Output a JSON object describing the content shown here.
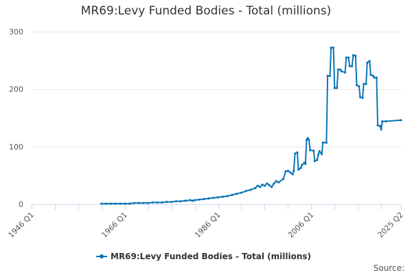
{
  "chart_data": {
    "type": "line",
    "title": "MR69:Levy Funded Bodies - Total (millions)",
    "xlabel": "",
    "ylabel": "",
    "x_ticks": [
      "1946 Q1",
      "1966 Q1",
      "1986 Q1",
      "2006 Q1",
      "2025 Q2"
    ],
    "x_range": [
      1946.0,
      2025.25
    ],
    "y_ticks": [
      0,
      100,
      200,
      300
    ],
    "ylim": [
      0,
      300
    ],
    "grid": "horizontal",
    "legend_position": "bottom-center",
    "credits": "Source:",
    "series": [
      {
        "name": "MR69:Levy Funded Bodies - Total (millions)",
        "color": "#0a74b8",
        "points": [
          [
            1961.0,
            1
          ],
          [
            1962.0,
            1
          ],
          [
            1963.0,
            1
          ],
          [
            1964.0,
            1
          ],
          [
            1965.0,
            1
          ],
          [
            1966.0,
            1
          ],
          [
            1967.0,
            1
          ],
          [
            1968.0,
            2
          ],
          [
            1969.0,
            2
          ],
          [
            1970.0,
            2
          ],
          [
            1971.0,
            2
          ],
          [
            1972.0,
            3
          ],
          [
            1973.0,
            3
          ],
          [
            1974.0,
            3
          ],
          [
            1975.0,
            4
          ],
          [
            1976.0,
            4
          ],
          [
            1977.0,
            5
          ],
          [
            1978.0,
            5
          ],
          [
            1979.0,
            6
          ],
          [
            1980.0,
            7
          ],
          [
            1980.5,
            6
          ],
          [
            1981.0,
            7
          ],
          [
            1982.0,
            8
          ],
          [
            1983.0,
            9
          ],
          [
            1984.0,
            10
          ],
          [
            1985.0,
            11
          ],
          [
            1986.0,
            12
          ],
          [
            1987.0,
            13
          ],
          [
            1988.0,
            14
          ],
          [
            1989.0,
            16
          ],
          [
            1990.0,
            18
          ],
          [
            1991.0,
            20
          ],
          [
            1992.0,
            23
          ],
          [
            1993.0,
            25
          ],
          [
            1994.0,
            28
          ],
          [
            1994.5,
            32
          ],
          [
            1995.0,
            30
          ],
          [
            1995.5,
            34
          ],
          [
            1996.0,
            32
          ],
          [
            1996.5,
            36
          ],
          [
            1997.0,
            33
          ],
          [
            1997.5,
            30
          ],
          [
            1998.0,
            36
          ],
          [
            1998.5,
            40
          ],
          [
            1999.0,
            38
          ],
          [
            2000.0,
            44
          ],
          [
            2000.5,
            57
          ],
          [
            2001.0,
            58
          ],
          [
            2001.5,
            55
          ],
          [
            2002.0,
            52
          ],
          [
            2002.25,
            58
          ],
          [
            2002.5,
            88
          ],
          [
            2003.0,
            90
          ],
          [
            2003.25,
            60
          ],
          [
            2003.75,
            63
          ],
          [
            2004.0,
            68
          ],
          [
            2004.5,
            72
          ],
          [
            2004.75,
            70
          ],
          [
            2005.0,
            112
          ],
          [
            2005.25,
            115
          ],
          [
            2005.5,
            112
          ],
          [
            2005.75,
            94
          ],
          [
            2006.5,
            93
          ],
          [
            2006.75,
            75
          ],
          [
            2007.25,
            77
          ],
          [
            2007.5,
            86
          ],
          [
            2007.75,
            92
          ],
          [
            2008.25,
            87
          ],
          [
            2008.5,
            107
          ],
          [
            2009.25,
            107
          ],
          [
            2009.5,
            223
          ],
          [
            2010.0,
            223
          ],
          [
            2010.25,
            272
          ],
          [
            2010.75,
            272
          ],
          [
            2011.0,
            202
          ],
          [
            2011.5,
            202
          ],
          [
            2011.75,
            234
          ],
          [
            2012.25,
            234
          ],
          [
            2012.5,
            231
          ],
          [
            2013.25,
            229
          ],
          [
            2013.5,
            255
          ],
          [
            2014.0,
            255
          ],
          [
            2014.25,
            240
          ],
          [
            2014.75,
            240
          ],
          [
            2015.0,
            259
          ],
          [
            2015.5,
            258
          ],
          [
            2015.75,
            207
          ],
          [
            2016.25,
            205
          ],
          [
            2016.5,
            186
          ],
          [
            2017.0,
            185
          ],
          [
            2017.25,
            209
          ],
          [
            2017.75,
            209
          ],
          [
            2018.0,
            246
          ],
          [
            2018.5,
            249
          ],
          [
            2018.75,
            225
          ],
          [
            2019.25,
            223
          ],
          [
            2019.5,
            220
          ],
          [
            2020.0,
            220
          ],
          [
            2020.25,
            137
          ],
          [
            2020.75,
            136
          ],
          [
            2021.0,
            130
          ],
          [
            2021.25,
            144
          ],
          [
            2022.0,
            144
          ],
          [
            2025.25,
            146
          ]
        ]
      }
    ]
  }
}
